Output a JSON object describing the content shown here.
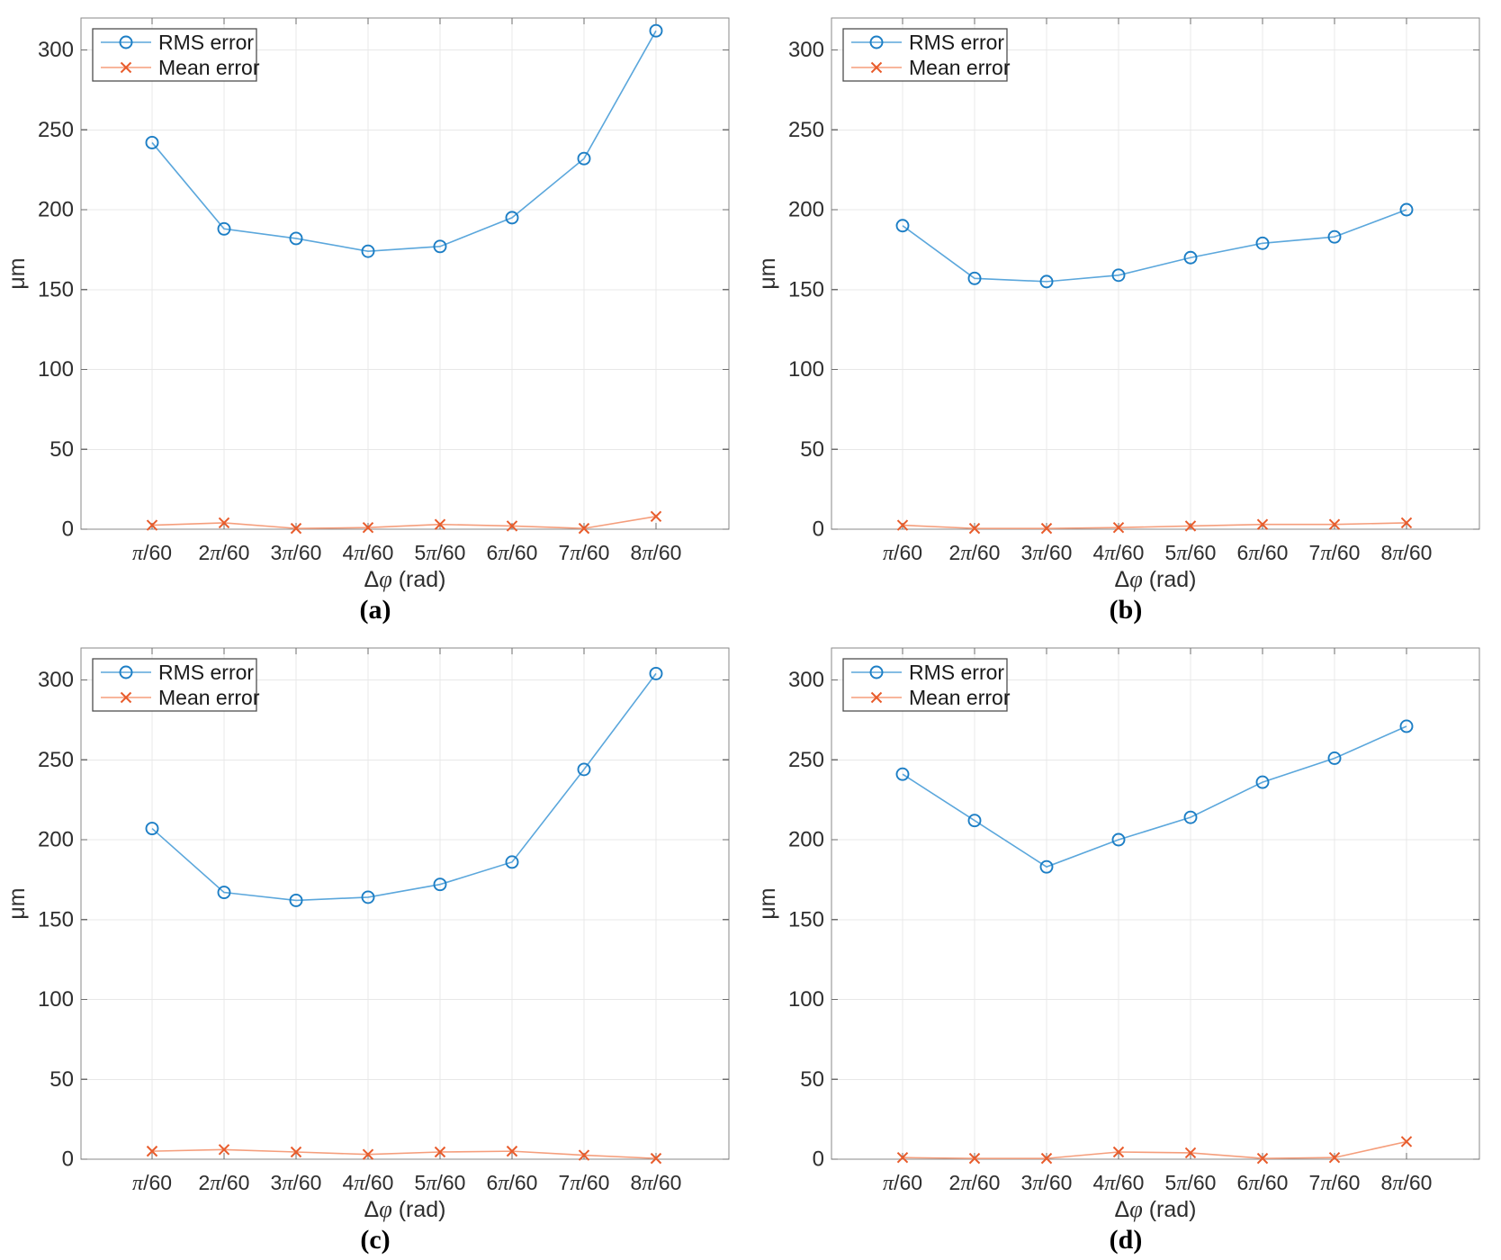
{
  "colors": {
    "background": "#ffffff",
    "grid": "#e8e8e8",
    "axis_box": "#8a8a8a",
    "tick": "#6e6e6e",
    "tick_label": "#2e2e2e",
    "axis_label": "#2e2e2e",
    "legend_border": "#4d4d4d",
    "legend_text": "#1a1a1a",
    "rms_line": "#5ba7dc",
    "rms_marker": "#1c7ec5",
    "mean_line": "#f59e7c",
    "mean_marker": "#e85c2c"
  },
  "legend": {
    "items": [
      {
        "label": "RMS error",
        "marker": "circle"
      },
      {
        "label": "Mean error",
        "marker": "x"
      }
    ]
  },
  "chart_data": [
    {
      "id": "a",
      "caption": "(a)",
      "type": "line",
      "categories": [
        "π/60",
        "2π/60",
        "3π/60",
        "4π/60",
        "5π/60",
        "6π/60",
        "7π/60",
        "8π/60"
      ],
      "xlabel": "Δφ (rad)",
      "ylabel": "μm",
      "ylim": [
        0,
        320
      ],
      "yticks": [
        0,
        50,
        100,
        150,
        200,
        250,
        300
      ],
      "grid": true,
      "legend_position": "top-left",
      "series": [
        {
          "name": "RMS error",
          "marker": "circle",
          "line_color": "#5ba7dc",
          "marker_color": "#1c7ec5",
          "values": [
            242,
            188,
            182,
            174,
            177,
            195,
            232,
            312
          ]
        },
        {
          "name": "Mean error",
          "marker": "x",
          "line_color": "#f59e7c",
          "marker_color": "#e85c2c",
          "values": [
            2.5,
            4,
            0.5,
            1,
            3,
            2,
            0.5,
            8
          ]
        }
      ]
    },
    {
      "id": "b",
      "caption": "(b)",
      "type": "line",
      "categories": [
        "π/60",
        "2π/60",
        "3π/60",
        "4π/60",
        "5π/60",
        "6π/60",
        "7π/60",
        "8π/60"
      ],
      "xlabel": "Δφ (rad)",
      "ylabel": "μm",
      "ylim": [
        0,
        320
      ],
      "yticks": [
        0,
        50,
        100,
        150,
        200,
        250,
        300
      ],
      "grid": true,
      "legend_position": "top-left",
      "series": [
        {
          "name": "RMS error",
          "marker": "circle",
          "line_color": "#5ba7dc",
          "marker_color": "#1c7ec5",
          "values": [
            190,
            157,
            155,
            159,
            170,
            179,
            183,
            200
          ]
        },
        {
          "name": "Mean error",
          "marker": "x",
          "line_color": "#f59e7c",
          "marker_color": "#e85c2c",
          "values": [
            2.5,
            0.5,
            0.5,
            1,
            2,
            3,
            3,
            4
          ]
        }
      ]
    },
    {
      "id": "c",
      "caption": "(c)",
      "type": "line",
      "categories": [
        "π/60",
        "2π/60",
        "3π/60",
        "4π/60",
        "5π/60",
        "6π/60",
        "7π/60",
        "8π/60"
      ],
      "xlabel": "Δφ (rad)",
      "ylabel": "μm",
      "ylim": [
        0,
        320
      ],
      "yticks": [
        0,
        50,
        100,
        150,
        200,
        250,
        300
      ],
      "grid": true,
      "legend_position": "top-left",
      "series": [
        {
          "name": "RMS error",
          "marker": "circle",
          "line_color": "#5ba7dc",
          "marker_color": "#1c7ec5",
          "values": [
            207,
            167,
            162,
            164,
            172,
            186,
            244,
            304
          ]
        },
        {
          "name": "Mean error",
          "marker": "x",
          "line_color": "#f59e7c",
          "marker_color": "#e85c2c",
          "values": [
            5,
            6,
            4.5,
            3,
            4.5,
            5,
            2.5,
            0.5
          ]
        }
      ]
    },
    {
      "id": "d",
      "caption": "(d)",
      "type": "line",
      "categories": [
        "π/60",
        "2π/60",
        "3π/60",
        "4π/60",
        "5π/60",
        "6π/60",
        "7π/60",
        "8π/60"
      ],
      "xlabel": "Δφ (rad)",
      "ylabel": "μm",
      "ylim": [
        0,
        320
      ],
      "yticks": [
        0,
        50,
        100,
        150,
        200,
        250,
        300
      ],
      "grid": true,
      "legend_position": "top-left",
      "series": [
        {
          "name": "RMS error",
          "marker": "circle",
          "line_color": "#5ba7dc",
          "marker_color": "#1c7ec5",
          "values": [
            241,
            212,
            183,
            200,
            214,
            236,
            251,
            271
          ]
        },
        {
          "name": "Mean error",
          "marker": "x",
          "line_color": "#f59e7c",
          "marker_color": "#e85c2c",
          "values": [
            1,
            0.5,
            0.5,
            4.5,
            4,
            0.5,
            1,
            11
          ]
        }
      ]
    }
  ]
}
